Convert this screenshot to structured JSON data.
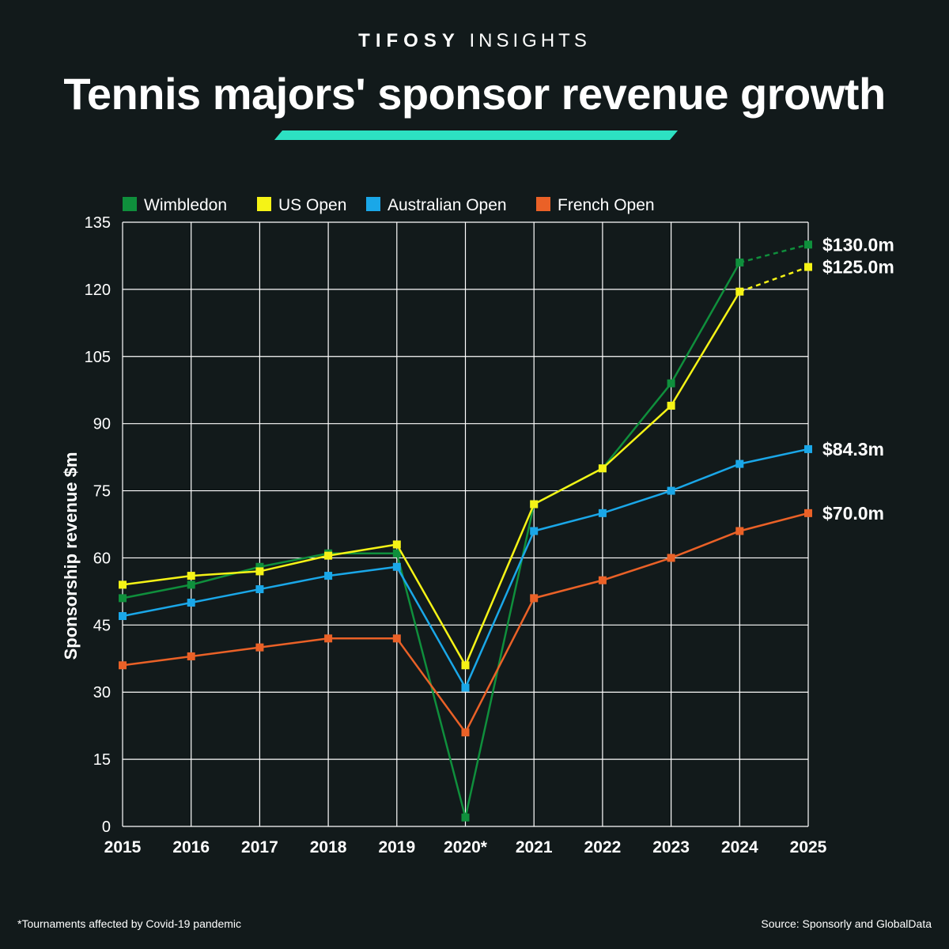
{
  "brand": {
    "bold": "TIFOSY",
    "light": "INSIGHTS"
  },
  "title": "Tennis majors' sponsor revenue growth",
  "footnote": "*Tournaments affected by Covid-19 pandemic",
  "source": "Source: Sponsorly and GlobalData",
  "colors": {
    "background": "#121a1b",
    "accent": "#2de1c2",
    "grid": "#ffffff"
  },
  "chart_data": {
    "type": "line",
    "title": "Tennis majors' sponsor revenue growth",
    "xlabel": "",
    "ylabel": "Sponsorship revenue $m",
    "categories": [
      "2015",
      "2016",
      "2017",
      "2018",
      "2019",
      "2020*",
      "2021",
      "2022",
      "2023",
      "2024",
      "2025"
    ],
    "ylim": [
      0,
      135
    ],
    "yticks": [
      0,
      15,
      30,
      45,
      60,
      75,
      90,
      105,
      120,
      135
    ],
    "grid": true,
    "legend_position": "top-left",
    "series": [
      {
        "name": "Wimbledon",
        "color": "#0f8f3c",
        "values": [
          51,
          54,
          58,
          61,
          61,
          2,
          72,
          80,
          99,
          126,
          130
        ],
        "projected_from_index": 9,
        "end_label": "$130.0m"
      },
      {
        "name": "US Open",
        "color": "#f5f316",
        "values": [
          54,
          56,
          57,
          60.5,
          63,
          36,
          72,
          80,
          94,
          119.5,
          125
        ],
        "projected_from_index": 9,
        "end_label": "$125.0m"
      },
      {
        "name": "Australian Open",
        "color": "#1aa7e8",
        "values": [
          47,
          50,
          53,
          56,
          58,
          31,
          66,
          70,
          75,
          81,
          84.3
        ],
        "end_label": "$84.3m"
      },
      {
        "name": "French Open",
        "color": "#ea6127",
        "values": [
          36,
          38,
          40,
          42,
          42,
          21,
          51,
          55,
          60,
          66,
          70
        ],
        "end_label": "$70.0m"
      }
    ]
  }
}
